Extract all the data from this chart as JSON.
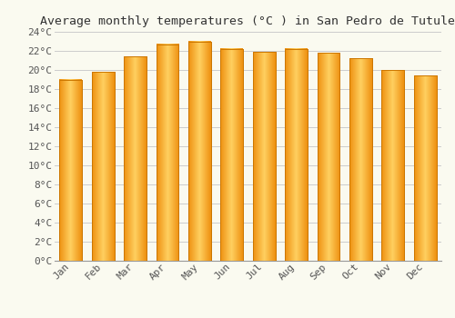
{
  "title": "Average monthly temperatures (°C ) in San Pedro de Tutule",
  "months": [
    "Jan",
    "Feb",
    "Mar",
    "Apr",
    "May",
    "Jun",
    "Jul",
    "Aug",
    "Sep",
    "Oct",
    "Nov",
    "Dec"
  ],
  "temperatures": [
    19.0,
    19.8,
    21.4,
    22.7,
    23.0,
    22.2,
    21.9,
    22.2,
    21.8,
    21.2,
    20.0,
    19.4
  ],
  "bar_color_center": "#FFD050",
  "bar_color_edge": "#E88000",
  "ylim": [
    0,
    24
  ],
  "yticks": [
    0,
    2,
    4,
    6,
    8,
    10,
    12,
    14,
    16,
    18,
    20,
    22,
    24
  ],
  "ytick_labels": [
    "0°C",
    "2°C",
    "4°C",
    "6°C",
    "8°C",
    "10°C",
    "12°C",
    "14°C",
    "16°C",
    "18°C",
    "20°C",
    "22°C",
    "24°C"
  ],
  "background_color": "#FAFAF0",
  "grid_color": "#CCCCCC",
  "title_fontsize": 9.5,
  "tick_fontsize": 8,
  "bar_width": 0.7,
  "fig_width": 5.0,
  "fig_height": 3.5
}
